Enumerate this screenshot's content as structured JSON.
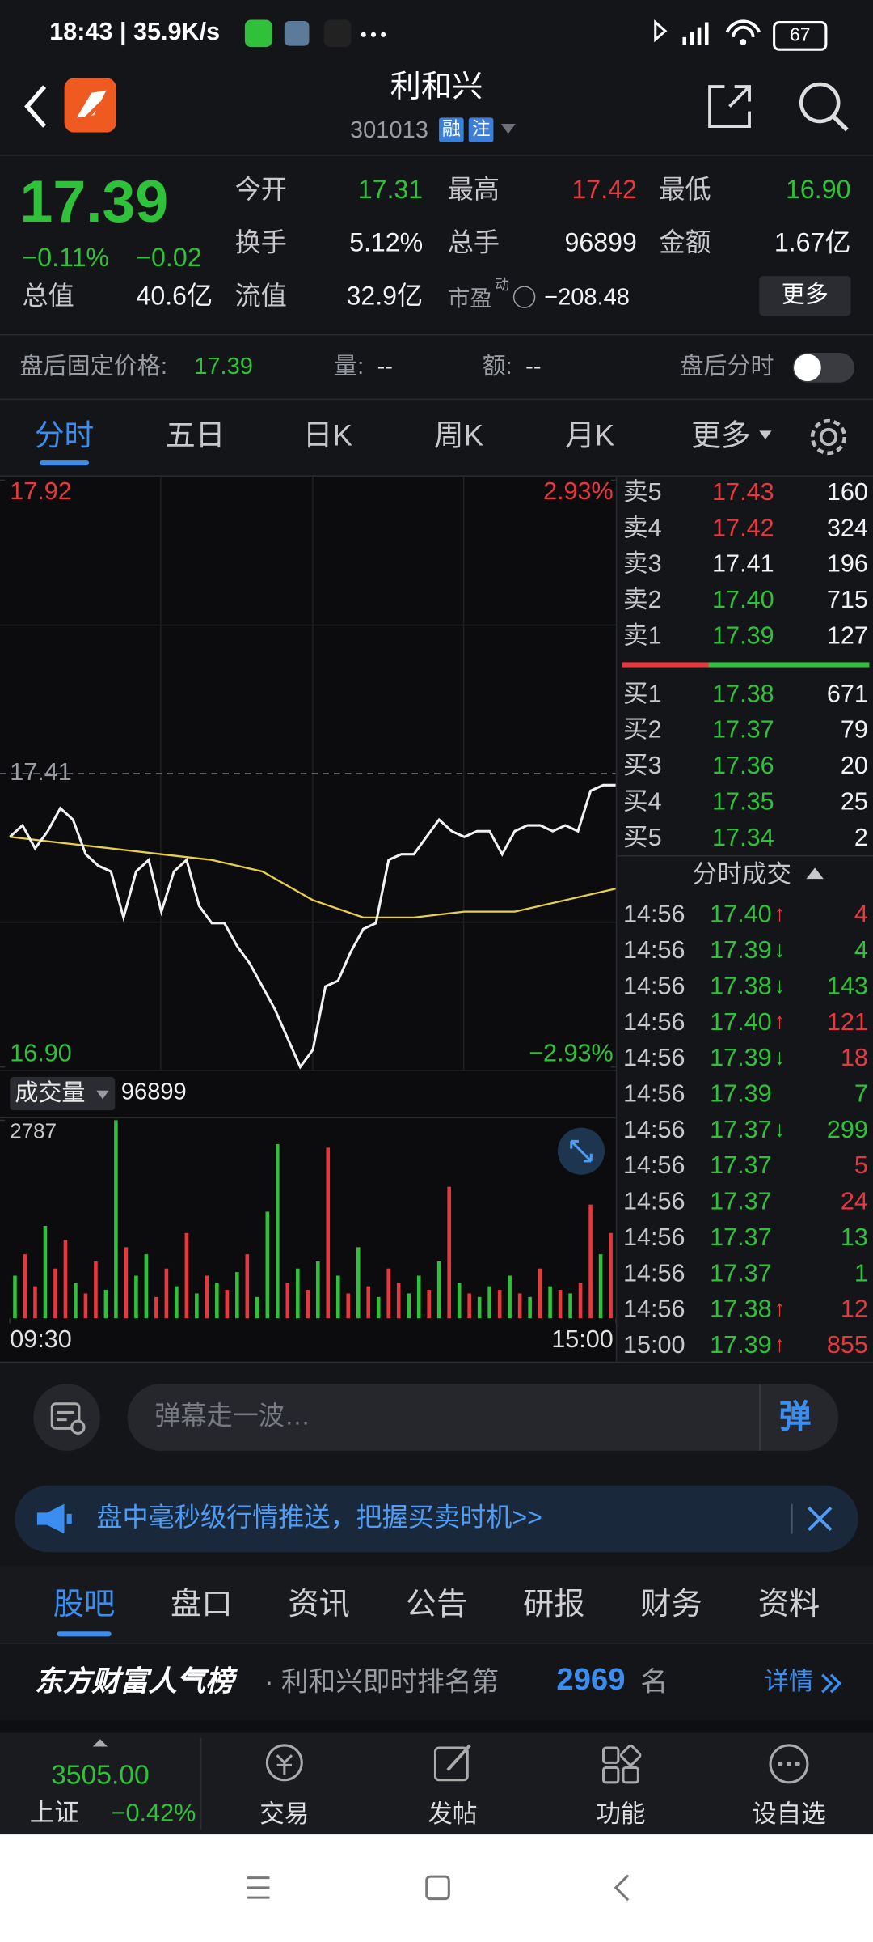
{
  "status_bar": {
    "time": "18:43 | 35.9K/s",
    "battery": "67"
  },
  "header": {
    "title": "利和兴",
    "code": "301013",
    "badges": [
      "融",
      "注"
    ]
  },
  "quote": {
    "price": "17.39",
    "change_pct": "−0.11%",
    "change": "−0.02",
    "color": "#2fc13a",
    "fields": [
      {
        "label": "今开",
        "value": "17.31",
        "color": "#2fc13a"
      },
      {
        "label": "最高",
        "value": "17.42",
        "color": "#e8383d"
      },
      {
        "label": "最低",
        "value": "16.90",
        "color": "#2fc13a"
      },
      {
        "label": "换手",
        "value": "5.12%"
      },
      {
        "label": "总手",
        "value": "96899"
      },
      {
        "label": "金额",
        "value": "1.67亿"
      },
      {
        "label": "总值",
        "value": "40.6亿"
      },
      {
        "label": "流值",
        "value": "32.9亿"
      },
      {
        "label": "市盈",
        "sup": "动",
        "value": "−208.48"
      }
    ],
    "more": "更多"
  },
  "after_hours": {
    "price_label": "盘后固定价格:",
    "price": "17.39",
    "volume_label": "量:",
    "volume": "--",
    "amount_label": "额:",
    "amount": "--",
    "toggle_label": "盘后分时"
  },
  "chart_tabs": {
    "items": [
      "分时",
      "五日",
      "日K",
      "周K",
      "月K",
      "更多"
    ],
    "active": 0
  },
  "chart_data": [
    {
      "type": "line",
      "xlim": [
        0,
        240
      ],
      "xticks": [
        {
          "value": 0,
          "label": "09:30"
        },
        {
          "value": 240,
          "label": "15:00"
        }
      ],
      "ylim": [
        16.9,
        17.92
      ],
      "yticks": [
        {
          "value": 16.9,
          "label": "16.90"
        },
        17.41,
        17.92
      ],
      "y2lim": [
        -2.93,
        2.93
      ],
      "y2ticks": [
        {
          "value": -2.93,
          "label": "−2.93%"
        },
        {
          "value": 2.93,
          "label": "2.93%"
        }
      ],
      "series": [
        {
          "color": "#f2f2f2",
          "x": [
            0,
            5,
            10,
            15,
            20,
            25,
            30,
            35,
            40,
            45,
            50,
            55,
            60,
            65,
            70,
            75,
            80,
            85,
            90,
            95,
            100,
            105,
            110,
            115,
            120,
            125,
            130,
            135,
            140,
            145,
            150,
            155,
            160,
            165,
            170,
            175,
            180,
            185,
            190,
            195,
            200,
            205,
            210,
            215,
            220,
            225,
            230,
            235,
            240
          ],
          "values": [
            17.3,
            17.32,
            17.28,
            17.31,
            17.35,
            17.33,
            17.27,
            17.25,
            17.24,
            17.16,
            17.24,
            17.26,
            17.17,
            17.24,
            17.26,
            17.18,
            17.15,
            17.15,
            17.11,
            17.08,
            17.04,
            17.0,
            16.95,
            16.9,
            16.93,
            17.04,
            17.05,
            17.1,
            17.14,
            17.15,
            17.26,
            17.27,
            17.27,
            17.3,
            17.33,
            17.31,
            17.3,
            17.31,
            17.31,
            17.27,
            17.31,
            17.32,
            17.32,
            17.31,
            17.32,
            17.31,
            17.38,
            17.39,
            17.39
          ]
        },
        {
          "color": "#e6d04a",
          "x": [
            0,
            20,
            40,
            60,
            80,
            100,
            120,
            140,
            160,
            180,
            200,
            220,
            240
          ],
          "values": [
            17.3,
            17.29,
            17.28,
            17.27,
            17.26,
            17.24,
            17.19,
            17.16,
            17.16,
            17.17,
            17.17,
            17.19,
            17.21
          ]
        }
      ]
    },
    {
      "type": "bar",
      "label": "成交量",
      "total": "96899",
      "ylim": [
        0,
        2787
      ],
      "yticks": [
        2787
      ],
      "series": [
        {
          "color": "#e8383d",
          "values": [
            null,
            900,
            450,
            null,
            700,
            1100,
            null,
            350,
            800,
            null,
            null,
            1000,
            null,
            null,
            300,
            700,
            null,
            1200,
            null,
            600,
            null,
            400,
            null,
            900,
            null,
            null,
            null,
            500,
            null,
            400,
            null,
            2400,
            null,
            350,
            null,
            450,
            null,
            700,
            500,
            null,
            null,
            400,
            null,
            1850,
            null,
            350,
            null,
            null,
            400,
            null,
            350,
            null,
            700,
            null,
            400,
            null,
            500,
            1600,
            null,
            1200
          ]
        },
        {
          "color": "#2fc13a",
          "values": [
            600,
            null,
            null,
            1300,
            null,
            null,
            500,
            null,
            null,
            400,
            2787,
            null,
            600,
            900,
            null,
            null,
            450,
            null,
            350,
            null,
            500,
            null,
            650,
            null,
            300,
            1500,
            2450,
            null,
            700,
            null,
            800,
            null,
            600,
            null,
            1000,
            null,
            300,
            null,
            null,
            350,
            600,
            null,
            800,
            null,
            500,
            null,
            300,
            450,
            null,
            600,
            null,
            300,
            null,
            450,
            null,
            350,
            null,
            null,
            900,
            null
          ]
        }
      ]
    }
  ],
  "order_book": {
    "asks": [
      {
        "label": "卖5",
        "price": "17.43",
        "volume": "160",
        "color": "#e8383d"
      },
      {
        "label": "卖4",
        "price": "17.42",
        "volume": "324",
        "color": "#e8383d"
      },
      {
        "label": "卖3",
        "price": "17.41",
        "volume": "196",
        "color": "#f2f2f2"
      },
      {
        "label": "卖2",
        "price": "17.40",
        "volume": "715",
        "color": "#2fc13a"
      },
      {
        "label": "卖1",
        "price": "17.39",
        "volume": "127",
        "color": "#2fc13a"
      }
    ],
    "bids": [
      {
        "label": "买1",
        "price": "17.38",
        "volume": "671",
        "color": "#2fc13a"
      },
      {
        "label": "买2",
        "price": "17.37",
        "volume": "79",
        "color": "#2fc13a"
      },
      {
        "label": "买3",
        "price": "17.36",
        "volume": "20",
        "color": "#2fc13a"
      },
      {
        "label": "买4",
        "price": "17.35",
        "volume": "25",
        "color": "#2fc13a"
      },
      {
        "label": "买5",
        "price": "17.34",
        "volume": "2",
        "color": "#2fc13a"
      }
    ]
  },
  "trades": {
    "title": "分时成交",
    "rows": [
      {
        "time": "14:56",
        "price": "17.40",
        "arrow": "↑",
        "volume": "4",
        "color": "#e8383d"
      },
      {
        "time": "14:56",
        "price": "17.39",
        "arrow": "↓",
        "volume": "4",
        "color": "#2fc13a"
      },
      {
        "time": "14:56",
        "price": "17.38",
        "arrow": "↓",
        "volume": "143",
        "color": "#2fc13a"
      },
      {
        "time": "14:56",
        "price": "17.40",
        "arrow": "↑",
        "volume": "121",
        "color": "#e8383d"
      },
      {
        "time": "14:56",
        "price": "17.39",
        "arrow": "↓",
        "volume": "18",
        "color": "#e8383d"
      },
      {
        "time": "14:56",
        "price": "17.39",
        "volume": "7",
        "color": "#2fc13a"
      },
      {
        "time": "14:56",
        "price": "17.37",
        "arrow": "↓",
        "volume": "299",
        "color": "#2fc13a"
      },
      {
        "time": "14:56",
        "price": "17.37",
        "volume": "5",
        "color": "#e8383d"
      },
      {
        "time": "14:56",
        "price": "17.37",
        "volume": "24",
        "color": "#e8383d"
      },
      {
        "time": "14:56",
        "price": "17.37",
        "volume": "13",
        "color": "#2fc13a"
      },
      {
        "time": "14:56",
        "price": "17.37",
        "volume": "1",
        "color": "#2fc13a"
      },
      {
        "time": "14:56",
        "price": "17.38",
        "arrow": "↑",
        "volume": "12",
        "color": "#e8383d"
      },
      {
        "time": "15:00",
        "price": "17.39",
        "arrow": "↑",
        "volume": "855",
        "color": "#e8383d"
      }
    ]
  },
  "danmu": {
    "placeholder": "弹幕走一波…",
    "button": "弹"
  },
  "banner": {
    "text": "盘中毫秒级行情推送，把握买卖时机>>"
  },
  "section_tabs": {
    "items": [
      "股吧",
      "盘口",
      "资讯",
      "公告",
      "研报",
      "财务",
      "资料"
    ],
    "active": 0
  },
  "ranking": {
    "title": "东方财富人气榜",
    "text": "· 利和兴即时排名第",
    "rank": "2969",
    "suffix": "名",
    "link": "详情"
  },
  "bottom_nav": {
    "index": {
      "value": "3505.00",
      "name": "上证",
      "change": "−0.42%"
    },
    "items": [
      "交易",
      "发帖",
      "功能",
      "设自选"
    ]
  }
}
